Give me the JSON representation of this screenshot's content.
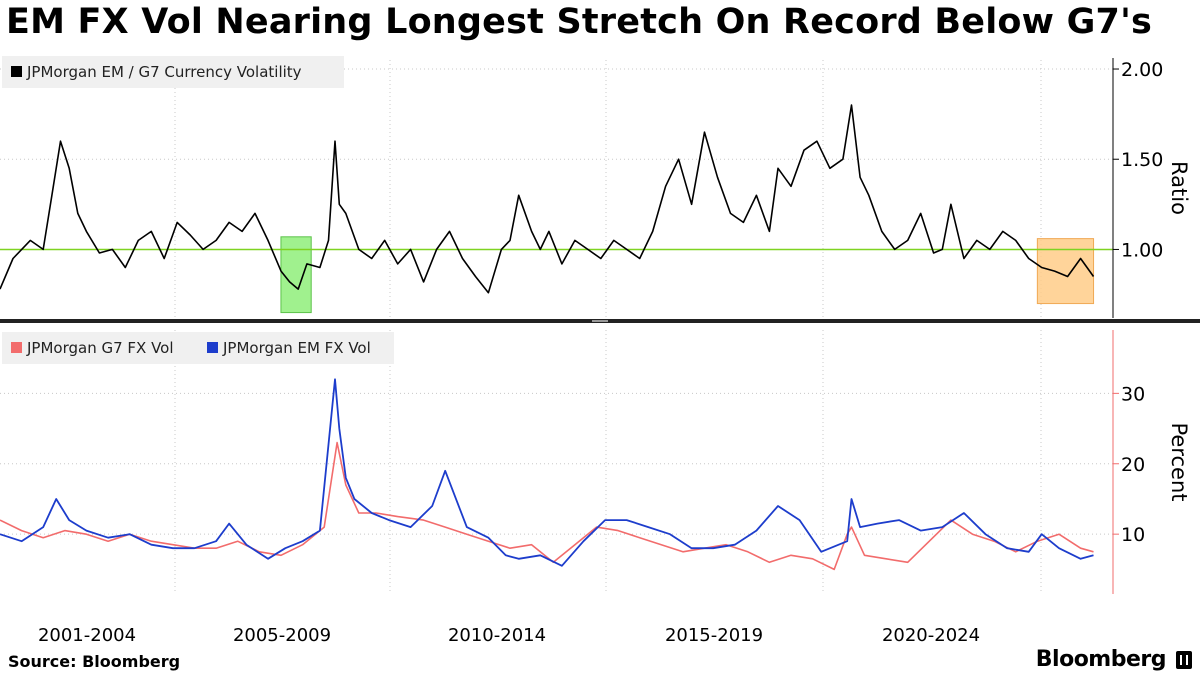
{
  "title": "EM FX Vol Nearing Longest Stretch On Record Below G7's",
  "source": "Source: Bloomberg",
  "brand": "Bloomberg",
  "chart_data": [
    {
      "type": "line",
      "legend": [
        "JPMorgan EM / G7 Currency Volatility"
      ],
      "ylabel": "Ratio",
      "y_ticks": [
        "1.00",
        "1.50",
        "2.00"
      ],
      "ylim": [
        0.62,
        2.05
      ],
      "xlim": [
        2000.0,
        2025.75
      ],
      "reference_line": {
        "y": 1.0,
        "color": "#7fd321"
      },
      "highlights": [
        {
          "x": [
            2006.5,
            2007.2
          ],
          "y": [
            0.65,
            1.07
          ],
          "color": "#8fee7a"
        },
        {
          "x": [
            2024.0,
            2025.3
          ],
          "y": [
            0.7,
            1.06
          ],
          "color": "#ffcc88"
        }
      ],
      "series": [
        {
          "color": "#000000",
          "x": [
            2000.0,
            2000.3,
            2000.7,
            2001.0,
            2001.2,
            2001.4,
            2001.6,
            2001.8,
            2002.0,
            2002.3,
            2002.6,
            2002.9,
            2003.2,
            2003.5,
            2003.8,
            2004.1,
            2004.4,
            2004.7,
            2005.0,
            2005.3,
            2005.6,
            2005.9,
            2006.2,
            2006.5,
            2006.7,
            2006.9,
            2007.1,
            2007.4,
            2007.6,
            2007.75,
            2007.85,
            2008.0,
            2008.3,
            2008.6,
            2008.9,
            2009.2,
            2009.5,
            2009.8,
            2010.1,
            2010.4,
            2010.7,
            2011.0,
            2011.3,
            2011.6,
            2011.8,
            2012.0,
            2012.3,
            2012.5,
            2012.7,
            2013.0,
            2013.3,
            2013.6,
            2013.9,
            2014.2,
            2014.5,
            2014.8,
            2015.1,
            2015.4,
            2015.7,
            2016.0,
            2016.3,
            2016.6,
            2016.9,
            2017.2,
            2017.5,
            2017.8,
            2018.0,
            2018.3,
            2018.6,
            2018.9,
            2019.2,
            2019.5,
            2019.7,
            2019.9,
            2020.1,
            2020.4,
            2020.7,
            2021.0,
            2021.3,
            2021.6,
            2021.8,
            2022.0,
            2022.3,
            2022.6,
            2022.9,
            2023.2,
            2023.5,
            2023.8,
            2024.1,
            2024.4,
            2024.7,
            2025.0,
            2025.3
          ],
          "values": [
            0.78,
            0.95,
            1.05,
            1.0,
            1.3,
            1.6,
            1.45,
            1.2,
            1.1,
            0.98,
            1.0,
            0.9,
            1.05,
            1.1,
            0.95,
            1.15,
            1.08,
            1.0,
            1.05,
            1.15,
            1.1,
            1.2,
            1.05,
            0.88,
            0.82,
            0.78,
            0.92,
            0.9,
            1.05,
            1.6,
            1.25,
            1.2,
            1.0,
            0.95,
            1.05,
            0.92,
            1.0,
            0.82,
            1.0,
            1.1,
            0.95,
            0.85,
            0.76,
            1.0,
            1.05,
            1.3,
            1.1,
            1.0,
            1.1,
            0.92,
            1.05,
            1.0,
            0.95,
            1.05,
            1.0,
            0.95,
            1.1,
            1.35,
            1.5,
            1.25,
            1.65,
            1.4,
            1.2,
            1.15,
            1.3,
            1.1,
            1.45,
            1.35,
            1.55,
            1.6,
            1.45,
            1.5,
            1.8,
            1.4,
            1.3,
            1.1,
            1.0,
            1.05,
            1.2,
            0.98,
            1.0,
            1.25,
            0.95,
            1.05,
            1.0,
            1.1,
            1.05,
            0.95,
            0.9,
            0.88,
            0.85,
            0.95,
            0.85
          ]
        }
      ]
    },
    {
      "type": "line",
      "legend": [
        "JPMorgan G7 FX Vol",
        "JPMorgan EM FX Vol"
      ],
      "ylabel": "Percent",
      "y_ticks": [
        "10",
        "20",
        "30"
      ],
      "ylim": [
        1.5,
        39
      ],
      "xlim": [
        2000.0,
        2025.75
      ],
      "x_ticks": [
        "2001-2004",
        "2005-2009",
        "2010-2014",
        "2015-2019",
        "2020-2024"
      ],
      "series": [
        {
          "name": "JPMorgan G7 FX Vol",
          "color": "#f26c6c",
          "x": [
            2000.0,
            2000.5,
            2001.0,
            2001.5,
            2002.0,
            2002.5,
            2003.0,
            2003.5,
            2004.0,
            2004.5,
            2005.0,
            2005.5,
            2006.0,
            2006.5,
            2007.0,
            2007.5,
            2007.8,
            2008.0,
            2008.3,
            2008.7,
            2009.2,
            2009.8,
            2010.3,
            2010.8,
            2011.3,
            2011.8,
            2012.3,
            2012.8,
            2013.3,
            2013.8,
            2014.3,
            2014.8,
            2015.3,
            2015.8,
            2016.3,
            2016.8,
            2017.3,
            2017.8,
            2018.3,
            2018.8,
            2019.3,
            2019.6,
            2019.7,
            2020.0,
            2020.5,
            2021.0,
            2021.5,
            2022.0,
            2022.5,
            2023.0,
            2023.5,
            2024.0,
            2024.5,
            2025.0,
            2025.3
          ],
          "values": [
            12.0,
            10.5,
            9.5,
            10.5,
            10.0,
            9.0,
            10.0,
            9.0,
            8.5,
            8.0,
            8.0,
            9.0,
            7.5,
            7.0,
            8.5,
            11.0,
            23.0,
            17.0,
            13.0,
            13.0,
            12.5,
            12.0,
            11.0,
            10.0,
            9.0,
            8.0,
            8.5,
            6.0,
            8.5,
            11.0,
            10.5,
            9.5,
            8.5,
            7.5,
            8.0,
            8.5,
            7.5,
            6.0,
            7.0,
            6.5,
            5.0,
            10.0,
            11.0,
            7.0,
            6.5,
            6.0,
            9.0,
            12.0,
            10.0,
            9.0,
            7.5,
            9.0,
            10.0,
            8.0,
            7.5
          ]
        },
        {
          "name": "JPMorgan EM FX Vol",
          "color": "#1d3dcc",
          "x": [
            2000.0,
            2000.5,
            2001.0,
            2001.3,
            2001.6,
            2002.0,
            2002.5,
            2003.0,
            2003.5,
            2004.0,
            2004.5,
            2005.0,
            2005.3,
            2005.7,
            2006.2,
            2006.6,
            2007.0,
            2007.4,
            2007.75,
            2007.85,
            2008.0,
            2008.2,
            2008.6,
            2009.0,
            2009.5,
            2010.0,
            2010.3,
            2010.8,
            2011.3,
            2011.7,
            2012.0,
            2012.5,
            2013.0,
            2013.5,
            2014.0,
            2014.5,
            2015.0,
            2015.5,
            2016.0,
            2016.5,
            2017.0,
            2017.5,
            2018.0,
            2018.5,
            2019.0,
            2019.6,
            2019.7,
            2019.9,
            2020.3,
            2020.8,
            2021.3,
            2021.8,
            2022.3,
            2022.8,
            2023.3,
            2023.8,
            2024.1,
            2024.5,
            2025.0,
            2025.3
          ],
          "values": [
            10.0,
            9.0,
            11.0,
            15.0,
            12.0,
            10.5,
            9.5,
            10.0,
            8.5,
            8.0,
            8.0,
            9.0,
            11.5,
            8.5,
            6.5,
            8.0,
            9.0,
            10.5,
            32.0,
            25.0,
            18.0,
            15.0,
            13.0,
            12.0,
            11.0,
            14.0,
            19.0,
            11.0,
            9.5,
            7.0,
            6.5,
            7.0,
            5.5,
            9.0,
            12.0,
            12.0,
            11.0,
            10.0,
            8.0,
            8.0,
            8.5,
            10.5,
            14.0,
            12.0,
            7.5,
            9.0,
            15.0,
            11.0,
            11.5,
            12.0,
            10.5,
            11.0,
            13.0,
            10.0,
            8.0,
            7.5,
            10.0,
            8.0,
            6.5,
            7.0
          ]
        }
      ]
    }
  ]
}
